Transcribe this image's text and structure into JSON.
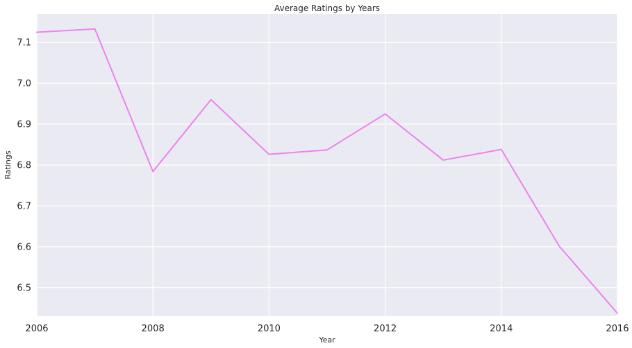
{
  "chart_data": {
    "type": "line",
    "title": "Average Ratings by Years",
    "xlabel": "Year",
    "ylabel": "Ratings",
    "x": [
      2006,
      2007,
      2008,
      2009,
      2010,
      2011,
      2012,
      2013,
      2014,
      2015,
      2016
    ],
    "series": [
      {
        "values": [
          7.125,
          7.133,
          6.784,
          6.96,
          6.826,
          6.837,
          6.925,
          6.812,
          6.838,
          6.601,
          6.437
        ]
      }
    ],
    "xlim": [
      2006,
      2016
    ],
    "ylim": [
      6.43,
      7.17
    ],
    "xticks": [
      2006,
      2008,
      2010,
      2012,
      2014,
      2016
    ],
    "yticks": [
      6.5,
      6.6,
      6.7,
      6.8,
      6.9,
      7.0,
      7.1
    ],
    "xtick_labels": [
      "2006",
      "2008",
      "2010",
      "2012",
      "2014",
      "2016"
    ],
    "ytick_labels": [
      "6.5",
      "6.6",
      "6.7",
      "6.8",
      "6.9",
      "7.0",
      "7.1"
    ],
    "grid": true,
    "colors": {
      "line": "#ee82ee",
      "background": "#eaeaf2",
      "grid": "#ffffff"
    }
  }
}
